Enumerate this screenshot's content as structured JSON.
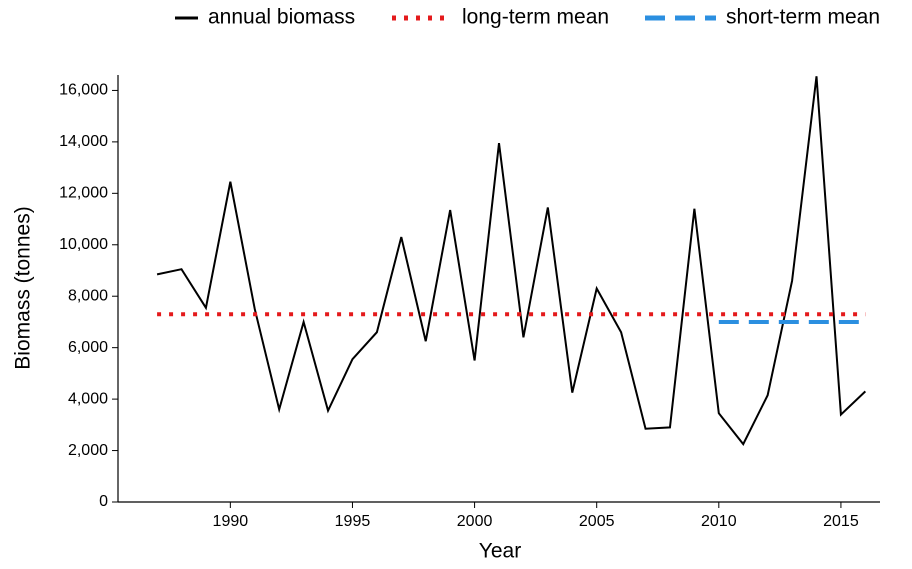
{
  "chart_data": {
    "type": "line",
    "xlabel": "Year",
    "ylabel": "Biomass (tonnes)",
    "xlim": [
      1985.4,
      2016.6
    ],
    "ylim": [
      0,
      16600
    ],
    "xticks": [
      1990,
      1995,
      2000,
      2005,
      2010,
      2015
    ],
    "yticks": [
      0,
      {
        "value": 2000,
        "label": "2,000"
      },
      {
        "value": 4000,
        "label": "4,000"
      },
      {
        "value": 6000,
        "label": "6,000"
      },
      {
        "value": 8000,
        "label": "8,000"
      },
      {
        "value": 10000,
        "label": "10,000"
      },
      {
        "value": 12000,
        "label": "12,000"
      },
      {
        "value": 14000,
        "label": "14,000"
      },
      {
        "value": 16000,
        "label": "16,000"
      }
    ],
    "grid": false,
    "legend": "top",
    "series": [
      {
        "name": "annual biomass",
        "color": "#000000",
        "style": "solid",
        "x": [
          1987,
          1988,
          1989,
          1990,
          1991,
          1992,
          1993,
          1994,
          1995,
          1996,
          1997,
          1998,
          1999,
          2000,
          2001,
          2002,
          2003,
          2004,
          2005,
          2006,
          2007,
          2008,
          2009,
          2010,
          2011,
          2012,
          2013,
          2014,
          2015,
          2016
        ],
        "values": [
          8850,
          9050,
          7550,
          12450,
          7500,
          3600,
          7000,
          3550,
          5550,
          6600,
          10300,
          6250,
          11350,
          5500,
          13950,
          6400,
          11450,
          4250,
          8300,
          6600,
          2850,
          2900,
          11400,
          3450,
          2250,
          4150,
          8600,
          16550,
          3400,
          4300
        ]
      },
      {
        "name": "long-term mean",
        "color": "#e41a1c",
        "style": "dotted",
        "x": [
          1987,
          2016
        ],
        "values": [
          7300,
          7300
        ]
      },
      {
        "name": "short-term mean",
        "color": "#2b8fe0",
        "style": "dashed",
        "x": [
          2010,
          2016
        ],
        "values": [
          7000,
          7000
        ]
      }
    ]
  }
}
